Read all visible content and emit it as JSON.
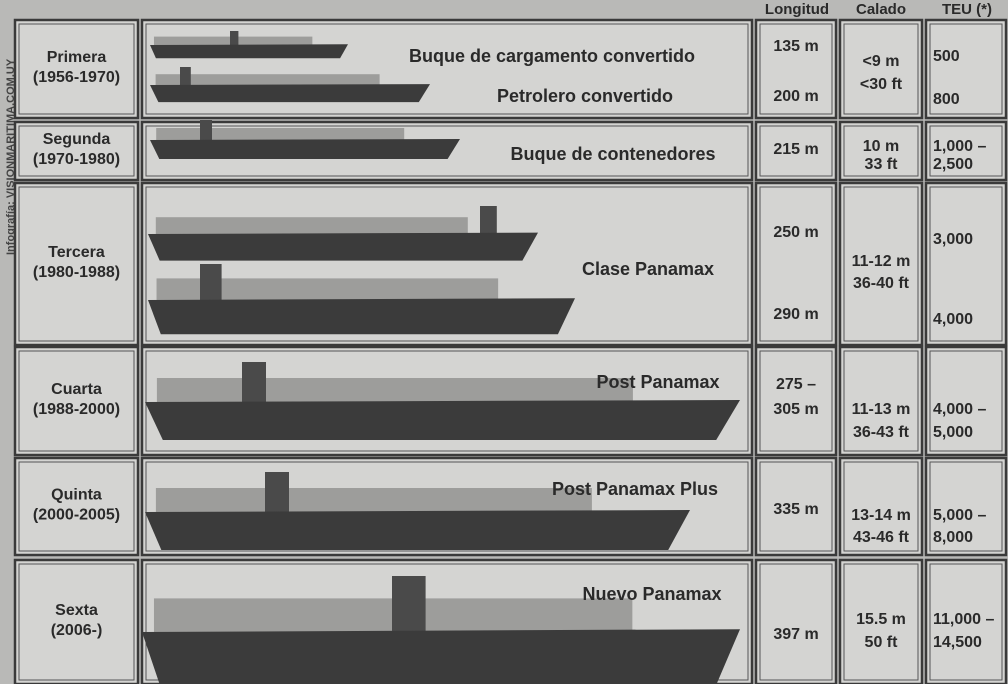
{
  "credit": "Infografía: VISIONMARITIMA.COM.UY",
  "columns": [
    "Longitud",
    "Calado",
    "TEU (*)"
  ],
  "rows": [
    {
      "generation": "Primera",
      "years": "(1956-1970)",
      "ships": [
        "Buque de cargamento convertido",
        "Petrolero convertido"
      ],
      "length": [
        "135 m",
        "200 m"
      ],
      "draft": [
        "<9 m",
        "<30 ft"
      ],
      "teu": [
        "500",
        "800"
      ]
    },
    {
      "generation": "Segunda",
      "years": "(1970-1980)",
      "ships": [
        "Buque de contenedores"
      ],
      "length": [
        "215 m"
      ],
      "draft": [
        "10 m",
        "33 ft"
      ],
      "teu": [
        "1,000 –",
        "2,500"
      ]
    },
    {
      "generation": "Tercera",
      "years": "(1980-1988)",
      "ships": [
        "Clase Panamax"
      ],
      "length": [
        "250 m",
        "290 m"
      ],
      "draft": [
        "11-12 m",
        "36-40 ft"
      ],
      "teu": [
        "3,000",
        "4,000"
      ]
    },
    {
      "generation": "Cuarta",
      "years": "(1988-2000)",
      "ships": [
        "Post Panamax"
      ],
      "length": [
        "275 –",
        "305 m"
      ],
      "draft": [
        "11-13 m",
        "36-43 ft"
      ],
      "teu": [
        "4,000 –",
        "5,000"
      ]
    },
    {
      "generation": "Quinta",
      "years": "(2000-2005)",
      "ships": [
        "Post Panamax Plus"
      ],
      "length": [
        "335 m"
      ],
      "draft": [
        "13-14 m",
        "43-46 ft"
      ],
      "teu": [
        "5,000 –",
        "8,000"
      ]
    },
    {
      "generation": "Sexta",
      "years": "(2006-)",
      "ships": [
        "Nuevo Panamax"
      ],
      "length": [
        "397 m"
      ],
      "draft": [
        "15.5 m",
        "50 ft"
      ],
      "teu": [
        "11,000 –",
        "14,500"
      ]
    }
  ]
}
